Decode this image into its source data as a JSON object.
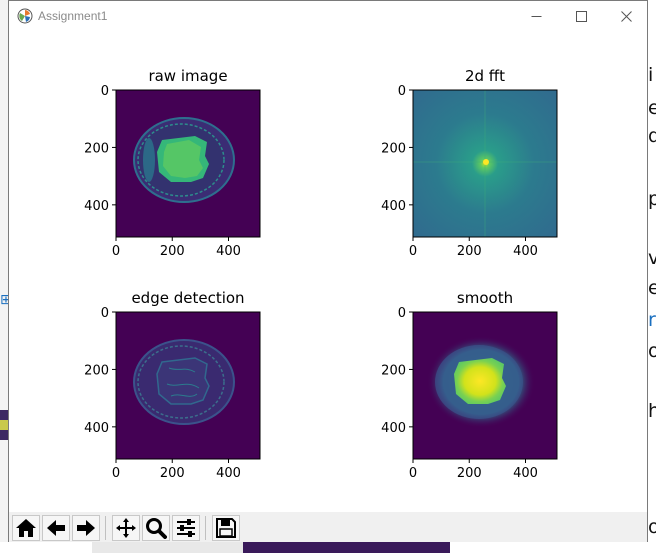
{
  "window": {
    "title": "Assignment1",
    "controls": [
      "minimize",
      "maximize",
      "close"
    ]
  },
  "background": {
    "right_text_fragments": [
      "i",
      "e",
      "d",
      "p",
      "v",
      "e",
      "r",
      "o",
      "h",
      "o"
    ]
  },
  "figure": {
    "colormap": "viridis",
    "subplots": [
      {
        "title": "raw image",
        "image": "raw-mri",
        "xticks": [
          "0",
          "200",
          "400"
        ],
        "yticks": [
          "0",
          "200",
          "400"
        ]
      },
      {
        "title": "2d fft",
        "image": "fft-spectrum",
        "xticks": [
          "0",
          "200",
          "400"
        ],
        "yticks": [
          "0",
          "200",
          "400"
        ]
      },
      {
        "title": "edge detection",
        "image": "edge-map",
        "xticks": [
          "0",
          "200",
          "400"
        ],
        "yticks": [
          "0",
          "200",
          "400"
        ]
      },
      {
        "title": "smooth",
        "image": "smoothed-mri",
        "xticks": [
          "0",
          "200",
          "400"
        ],
        "yticks": [
          "0",
          "200",
          "400"
        ]
      }
    ],
    "colors": {
      "low": "#440154",
      "mid": "#21918c",
      "high": "#fde725"
    }
  },
  "toolbar": {
    "buttons": [
      {
        "name": "home-icon",
        "tooltip": "Reset original view"
      },
      {
        "name": "back-icon",
        "tooltip": "Back to previous view"
      },
      {
        "name": "forward-icon",
        "tooltip": "Forward to next view"
      },
      {
        "name": "pan-icon",
        "tooltip": "Pan axes"
      },
      {
        "name": "zoom-icon",
        "tooltip": "Zoom to rectangle"
      },
      {
        "name": "configure-subplots-icon",
        "tooltip": "Configure subplots"
      },
      {
        "name": "save-icon",
        "tooltip": "Save the figure"
      }
    ]
  }
}
